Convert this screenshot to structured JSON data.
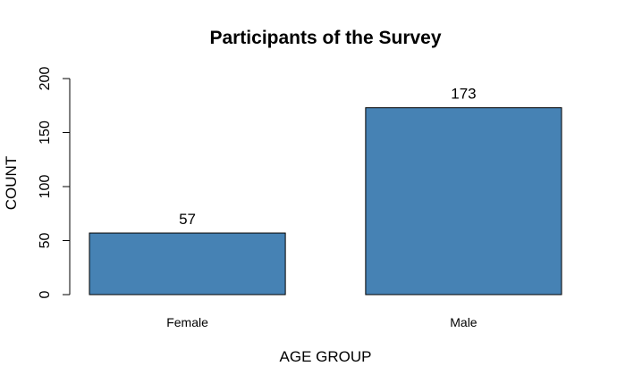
{
  "chart_data": {
    "type": "bar",
    "title": "Participants of the Survey",
    "xlabel": "AGE GROUP",
    "ylabel": "COUNT",
    "categories": [
      "Female",
      "Male"
    ],
    "values": [
      57,
      173
    ],
    "data_labels": [
      "57",
      "173"
    ],
    "ylim": [
      0,
      200
    ],
    "yticks": [
      0,
      50,
      100,
      150,
      200
    ],
    "ytick_labels": [
      "0",
      "50",
      "100",
      "150",
      "200"
    ],
    "bar_color": "#4682b4",
    "grid": false,
    "legend": "none"
  }
}
